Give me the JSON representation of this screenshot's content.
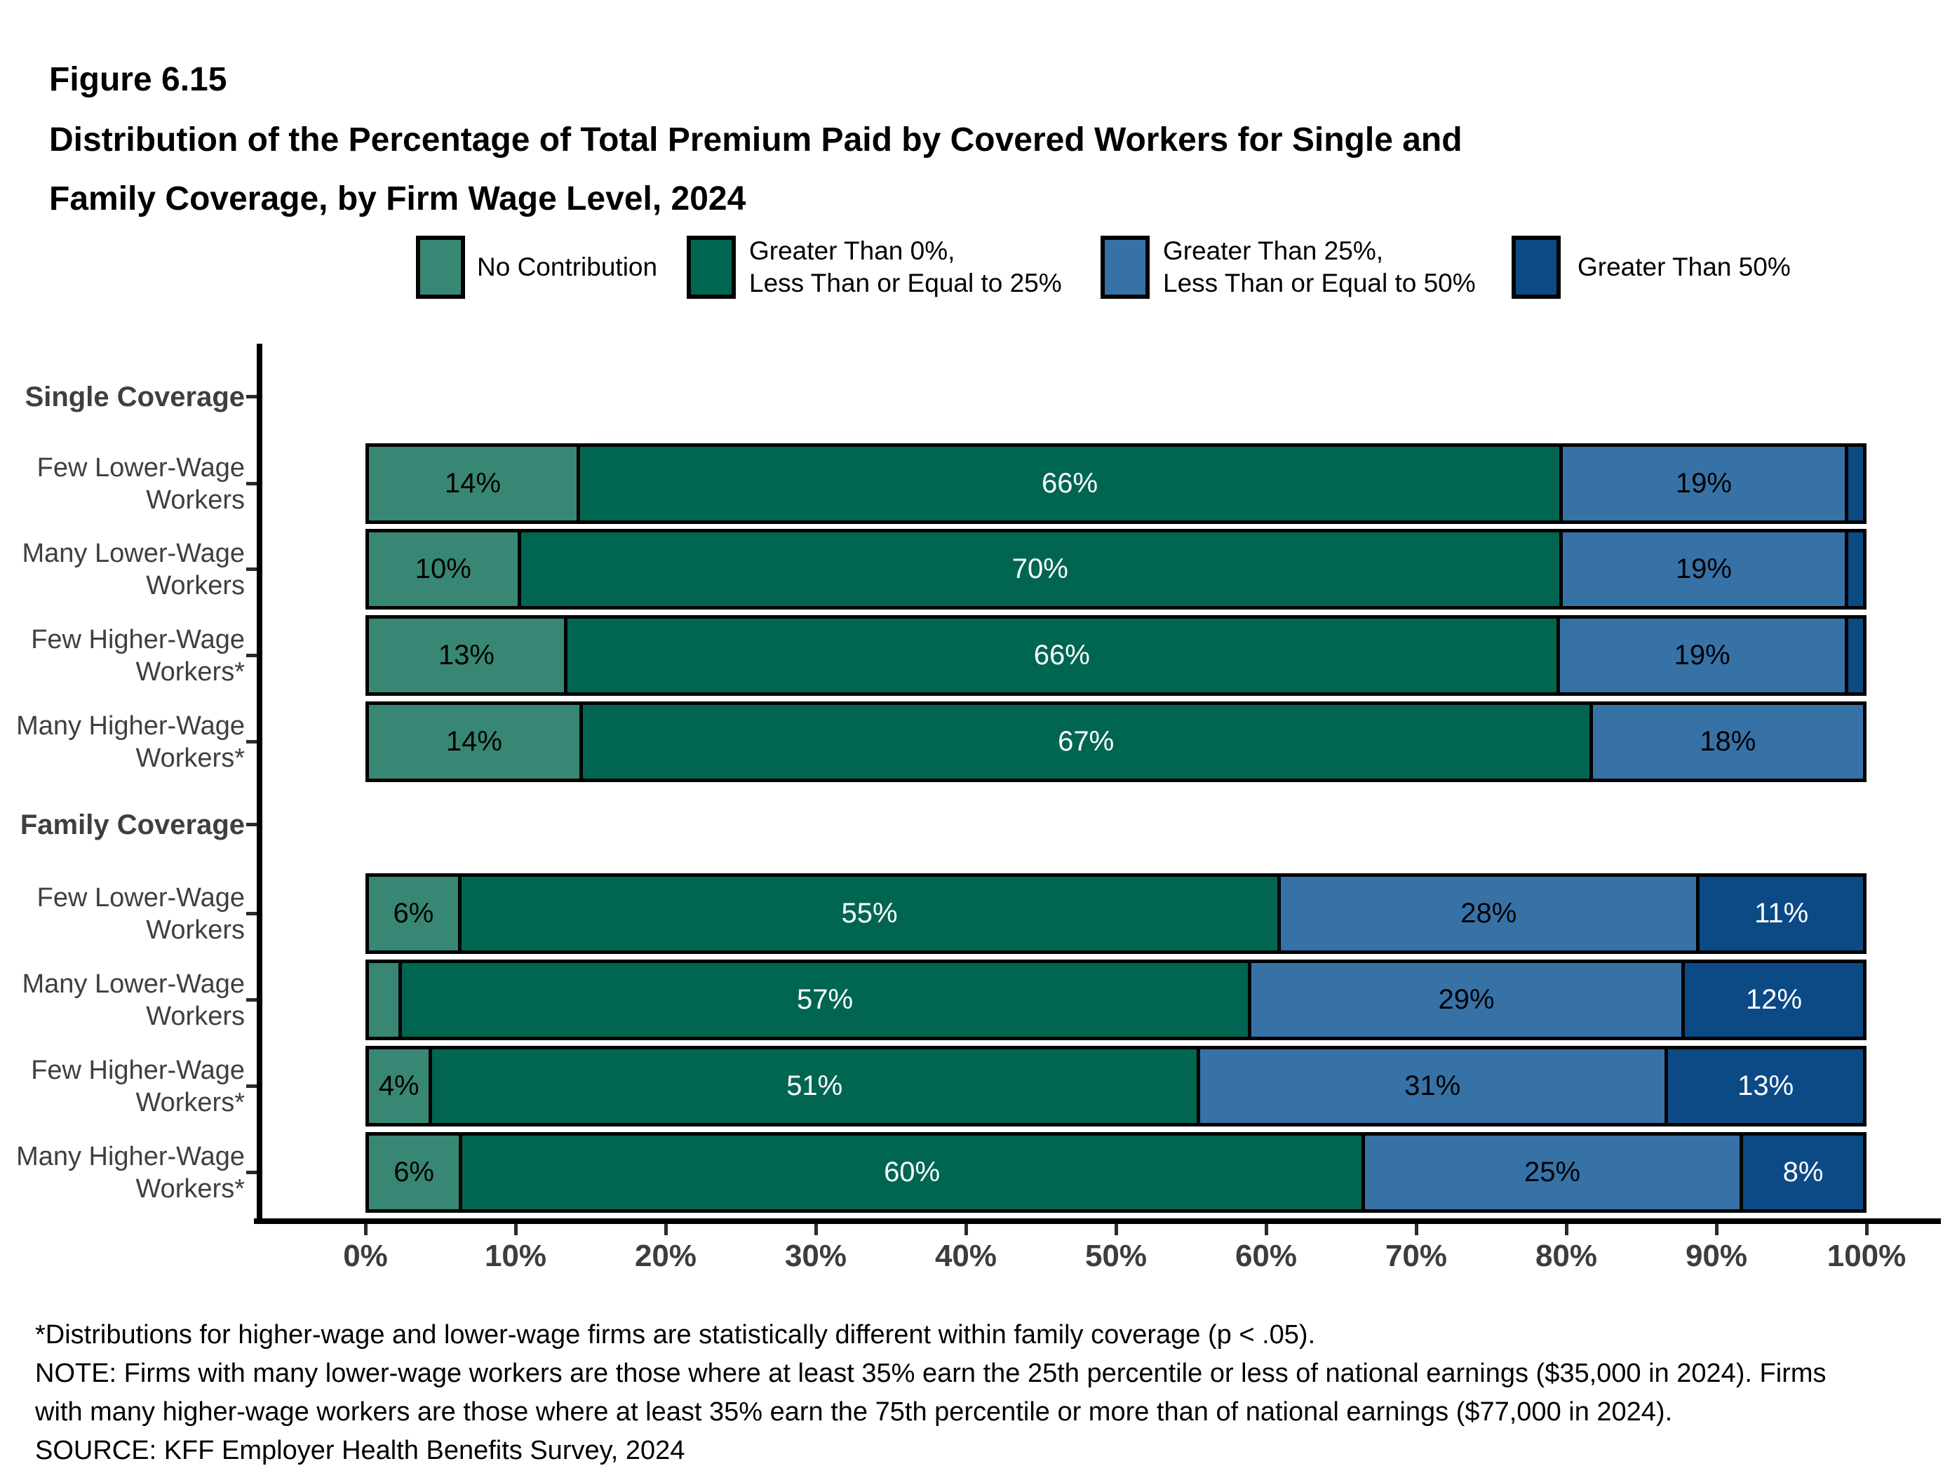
{
  "figure_label": "Figure 6.15",
  "title_lines": [
    "Distribution of the Percentage of Total Premium Paid by Covered Workers for Single and",
    "Family Coverage, by Firm Wage Level, 2024"
  ],
  "colors": {
    "no_contribution": "#388774",
    "gt0_le25": "#006652",
    "gt25_le50": "#3772A7",
    "gt50": "#0C4A86",
    "axis_text": "#3d3d3d",
    "category_text": "#3f3f3f"
  },
  "legend": {
    "items": [
      {
        "series": 0,
        "label_lines": [
          "No Contribution"
        ]
      },
      {
        "series": 1,
        "label_lines": [
          "Greater Than 0%,",
          "Less Than or Equal to 25%"
        ]
      },
      {
        "series": 2,
        "label_lines": [
          "Greater Than 25%,",
          "Less Than or Equal to 50%"
        ]
      },
      {
        "series": 3,
        "label_lines": [
          "Greater Than 50%"
        ]
      }
    ]
  },
  "chart_data": {
    "type": "bar",
    "orientation": "horizontal",
    "stacked": true,
    "title": "Distribution of the Percentage of Total Premium Paid by Covered Workers for Single and Family Coverage, by Firm Wage Level, 2024",
    "x_axis": {
      "range": [
        0,
        100
      ],
      "tick_labels": [
        "0%",
        "10%",
        "20%",
        "30%",
        "40%",
        "50%",
        "60%",
        "70%",
        "80%",
        "90%",
        "100%"
      ],
      "grid": false
    },
    "legend_position": "top",
    "series": [
      {
        "name": "No Contribution",
        "color": "#388774",
        "text_color": "#000000"
      },
      {
        "name": "Greater Than 0%, Less Than or Equal to 25%",
        "color": "#006652",
        "text_color": "#ffffff"
      },
      {
        "name": "Greater Than 25%, Less Than or Equal to 50%",
        "color": "#3772A7",
        "text_color": "#000000"
      },
      {
        "name": "Greater Than 50%",
        "color": "#0C4A86",
        "text_color": "#ffffff"
      }
    ],
    "groups": [
      {
        "header": "Single Coverage",
        "rows": [
          {
            "label_lines": [
              "Few Lower-Wage",
              "Workers"
            ],
            "values": [
              14,
              66,
              19,
              1
            ],
            "labels": [
              "14%",
              "66%",
              "19%",
              ""
            ]
          },
          {
            "label_lines": [
              "Many Lower-Wage",
              "Workers"
            ],
            "values": [
              10,
              70,
              19,
              1
            ],
            "labels": [
              "10%",
              "70%",
              "19%",
              ""
            ]
          },
          {
            "label_lines": [
              "Few Higher-Wage",
              "Workers*"
            ],
            "values": [
              13,
              66,
              19,
              1
            ],
            "labels": [
              "13%",
              "66%",
              "19%",
              ""
            ]
          },
          {
            "label_lines": [
              "Many Higher-Wage",
              "Workers*"
            ],
            "values": [
              14,
              67,
              18,
              0
            ],
            "labels": [
              "14%",
              "67%",
              "18%",
              ""
            ]
          }
        ]
      },
      {
        "header": "Family Coverage",
        "rows": [
          {
            "label_lines": [
              "Few Lower-Wage",
              "Workers"
            ],
            "values": [
              6,
              55,
              28,
              11
            ],
            "labels": [
              "6%",
              "55%",
              "28%",
              "11%"
            ]
          },
          {
            "label_lines": [
              "Many Lower-Wage",
              "Workers"
            ],
            "values": [
              2,
              57,
              29,
              12
            ],
            "labels": [
              "",
              "57%",
              "29%",
              "12%"
            ]
          },
          {
            "label_lines": [
              "Few Higher-Wage",
              "Workers*"
            ],
            "values": [
              4,
              51,
              31,
              13
            ],
            "labels": [
              "4%",
              "51%",
              "31%",
              "13%"
            ]
          },
          {
            "label_lines": [
              "Many Higher-Wage",
              "Workers*"
            ],
            "values": [
              6,
              60,
              25,
              8
            ],
            "labels": [
              "6%",
              "60%",
              "25%",
              "8%"
            ]
          }
        ]
      }
    ]
  },
  "footnotes": [
    "*Distributions for higher-wage and lower-wage firms are statistically different within family coverage (p < .05).",
    "NOTE: Firms with many lower-wage workers are those where at least 35% earn the 25th percentile or less of national earnings ($35,000 in 2024). Firms",
    "with many higher-wage workers are those where at least 35% earn the 75th percentile or more than of national earnings ($77,000 in 2024).",
    "SOURCE: KFF Employer Health Benefits Survey, 2024"
  ]
}
